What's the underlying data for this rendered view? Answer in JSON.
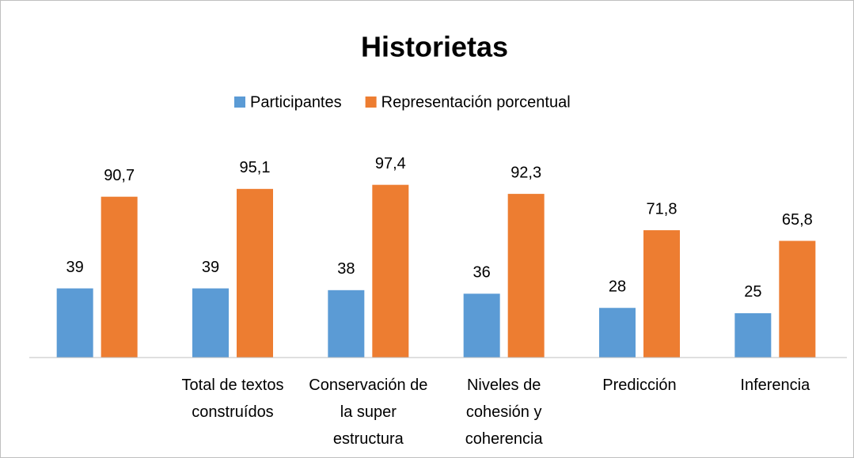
{
  "chart_data": {
    "type": "bar",
    "title": "Historietas",
    "categories": [
      null,
      "Total de textos construídos",
      "Conservación de la super estructura",
      "Niveles de cohesión y coherencia",
      "Predicción",
      "Inferencia"
    ],
    "series": [
      {
        "name": "Participantes",
        "color": "#5b9bd5",
        "values": [
          39,
          39,
          38,
          36,
          28,
          25
        ]
      },
      {
        "name": "Representación porcentual",
        "color": "#ed7d31",
        "values": [
          90.7,
          95.1,
          97.4,
          92.3,
          71.8,
          65.8
        ],
        "value_labels": [
          "90,7",
          "95,1",
          "97,4",
          "92,3",
          "71,8",
          "65,8"
        ]
      }
    ],
    "ylim": [
      0,
      120
    ],
    "legend": "top"
  }
}
